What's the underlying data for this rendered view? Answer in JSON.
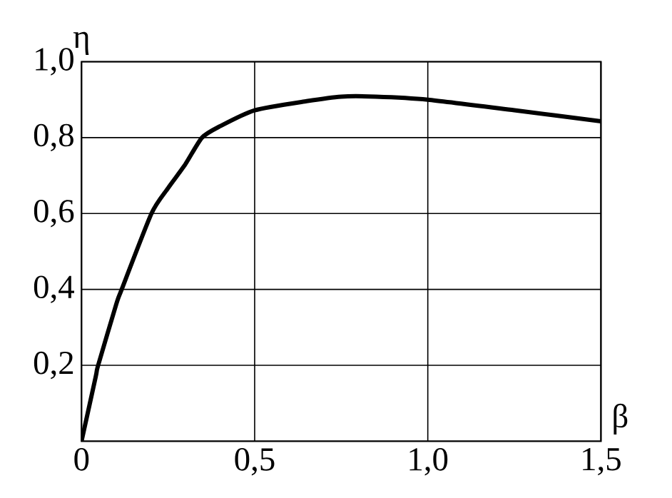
{
  "chart_data": {
    "type": "line",
    "xlabel": "β",
    "ylabel": "η",
    "xlim": [
      0,
      1.5
    ],
    "ylim": [
      0,
      1.0
    ],
    "xticks": [
      {
        "value": 0,
        "label": "0"
      },
      {
        "value": 0.5,
        "label": "0,5"
      },
      {
        "value": 1.0,
        "label": "1,0"
      },
      {
        "value": 1.5,
        "label": "1,5"
      }
    ],
    "yticks": [
      {
        "value": 0.2,
        "label": "0,2"
      },
      {
        "value": 0.4,
        "label": "0,4"
      },
      {
        "value": 0.6,
        "label": "0,6"
      },
      {
        "value": 0.8,
        "label": "0,8"
      },
      {
        "value": 1.0,
        "label": "1,0"
      }
    ],
    "grid": true,
    "marker": "none",
    "line_style": "solid",
    "series": [
      {
        "color": "#000000",
        "x": [
          0,
          0.041,
          0.048,
          0.1,
          0.116,
          0.202,
          0.25,
          0.3,
          0.348,
          0.4,
          0.5,
          0.65,
          0.75,
          0.85,
          1.0,
          1.25,
          1.5
        ],
        "values": [
          0,
          0.17,
          0.2,
          0.36,
          0.4,
          0.6,
          0.667,
          0.73,
          0.8,
          0.83,
          0.872,
          0.896,
          0.908,
          0.908,
          0.9,
          0.872,
          0.843
        ]
      }
    ]
  }
}
